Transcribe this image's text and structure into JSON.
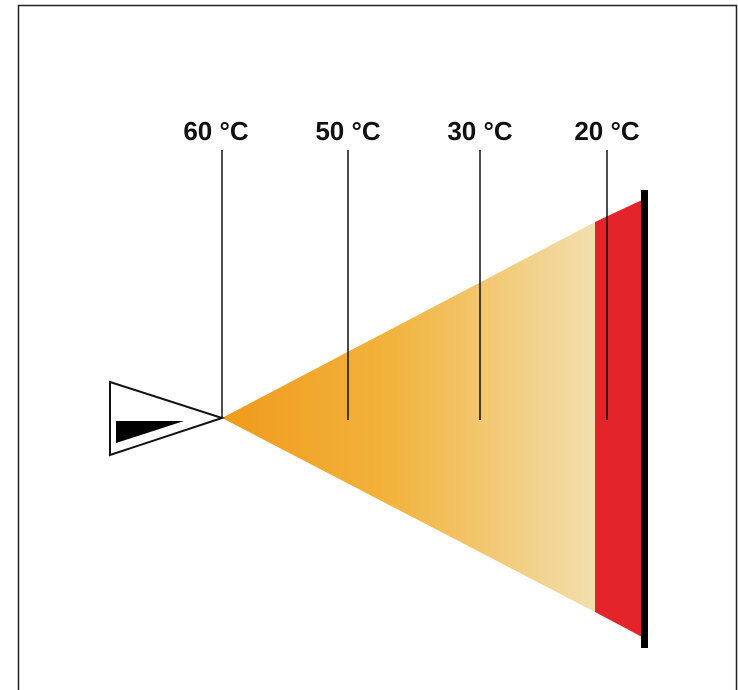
{
  "labels": [
    "60 °C",
    "50 °C",
    "30 °C",
    "20 °C"
  ]
}
